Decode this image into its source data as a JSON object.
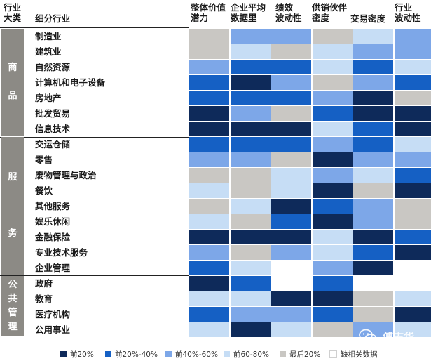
{
  "headers": {
    "industry_category": "行业\n大类",
    "sub_industry": "细分行业",
    "columns": [
      "整体价值\n潜力",
      "企业平均\n数据里",
      "绩效\n波动性",
      "供销伙伴\n密度",
      "交易密度",
      "行业\n波动性"
    ]
  },
  "categories": [
    {
      "label": "商\n\n品",
      "rows": 7
    },
    {
      "label": "服\n\n\n\n务",
      "rows": 9
    },
    {
      "label": "公\n共\n管\n理",
      "rows": 4
    }
  ],
  "rows": [
    {
      "label": "制造业",
      "cells": [
        "q5",
        "q3",
        "q3",
        "q5",
        "q4",
        "q3"
      ]
    },
    {
      "label": "建筑业",
      "cells": [
        "q5",
        "q4",
        "q5",
        "q4",
        "q3",
        "q3"
      ]
    },
    {
      "label": "自然资源",
      "cells": [
        "q3",
        "q2",
        "q2",
        "q4",
        "q2",
        "q4"
      ]
    },
    {
      "label": "计算机和电子设备",
      "cells": [
        "q2",
        "q1",
        "q3",
        "q5",
        "q3",
        "q2"
      ]
    },
    {
      "label": "房地产",
      "cells": [
        "q2",
        "q2",
        "q2",
        "q3",
        "q1",
        "q5"
      ]
    },
    {
      "label": "批发贸易",
      "cells": [
        "q1",
        "q3",
        "q5",
        "q2",
        "q1",
        "q1"
      ]
    },
    {
      "label": "信息技术",
      "cells": [
        "q1",
        "q1",
        "q1",
        "q4",
        "q2",
        "q1"
      ]
    },
    {
      "label": "交运仓储",
      "cells": [
        "q2",
        "q2",
        "q2",
        "q3",
        "q2",
        "q4"
      ]
    },
    {
      "label": "零售",
      "cells": [
        "q3",
        "q3",
        "q5",
        "q1",
        "q3",
        "q3"
      ]
    },
    {
      "label": "废物管理与政治",
      "cells": [
        "q5",
        "q5",
        "q4",
        "q3",
        "q4",
        "q2"
      ]
    },
    {
      "label": "餐饮",
      "cells": [
        "q4",
        "q5",
        "q4",
        "q1",
        "q5",
        "q1"
      ]
    },
    {
      "label": "其他服务",
      "cells": [
        "q5",
        "q4",
        "q1",
        "q2",
        "q3",
        "q5"
      ]
    },
    {
      "label": "娱乐休闲",
      "cells": [
        "q4",
        "q5",
        "q2",
        "q1",
        "q3",
        "q5"
      ]
    },
    {
      "label": "金融保险",
      "cells": [
        "q1",
        "q1",
        "q1",
        "q4",
        "q1",
        "q2"
      ]
    },
    {
      "label": "专业技术服务",
      "cells": [
        "q3",
        "q5",
        "q3",
        "q4",
        "q2",
        "q1"
      ]
    },
    {
      "label": "企业管理",
      "cells": [
        "q2",
        "q4",
        "na",
        "q3",
        "q1",
        "na"
      ]
    },
    {
      "label": "政府",
      "cells": [
        "q1",
        "q2",
        "na",
        "q2",
        "na",
        "na"
      ]
    },
    {
      "label": "教育",
      "cells": [
        "q4",
        "q4",
        "q1",
        "q1",
        "q5",
        "q4"
      ]
    },
    {
      "label": "医疗机构",
      "cells": [
        "q2",
        "q3",
        "q3",
        "q2",
        "q5",
        "q1"
      ]
    },
    {
      "label": "公用事业",
      "cells": [
        "q4",
        "q1",
        "q4",
        "q5",
        "q3",
        "q4"
      ]
    }
  ],
  "legend": [
    {
      "key": "q1",
      "label": "前20%",
      "color": "#0e2a5a"
    },
    {
      "key": "q2",
      "label": "前20%-40%",
      "color": "#1560c4"
    },
    {
      "key": "q3",
      "label": "前40%-60%",
      "color": "#7da7e8"
    },
    {
      "key": "q4",
      "label": "前60-80%",
      "color": "#c6ddf5"
    },
    {
      "key": "q5",
      "label": "最后20%",
      "color": "#c9c7c3"
    },
    {
      "key": "na",
      "label": "缺相关数据",
      "color": "#ffffff"
    }
  ],
  "watermark": {
    "text": "傅志华",
    "icon": "wechat-icon"
  }
}
